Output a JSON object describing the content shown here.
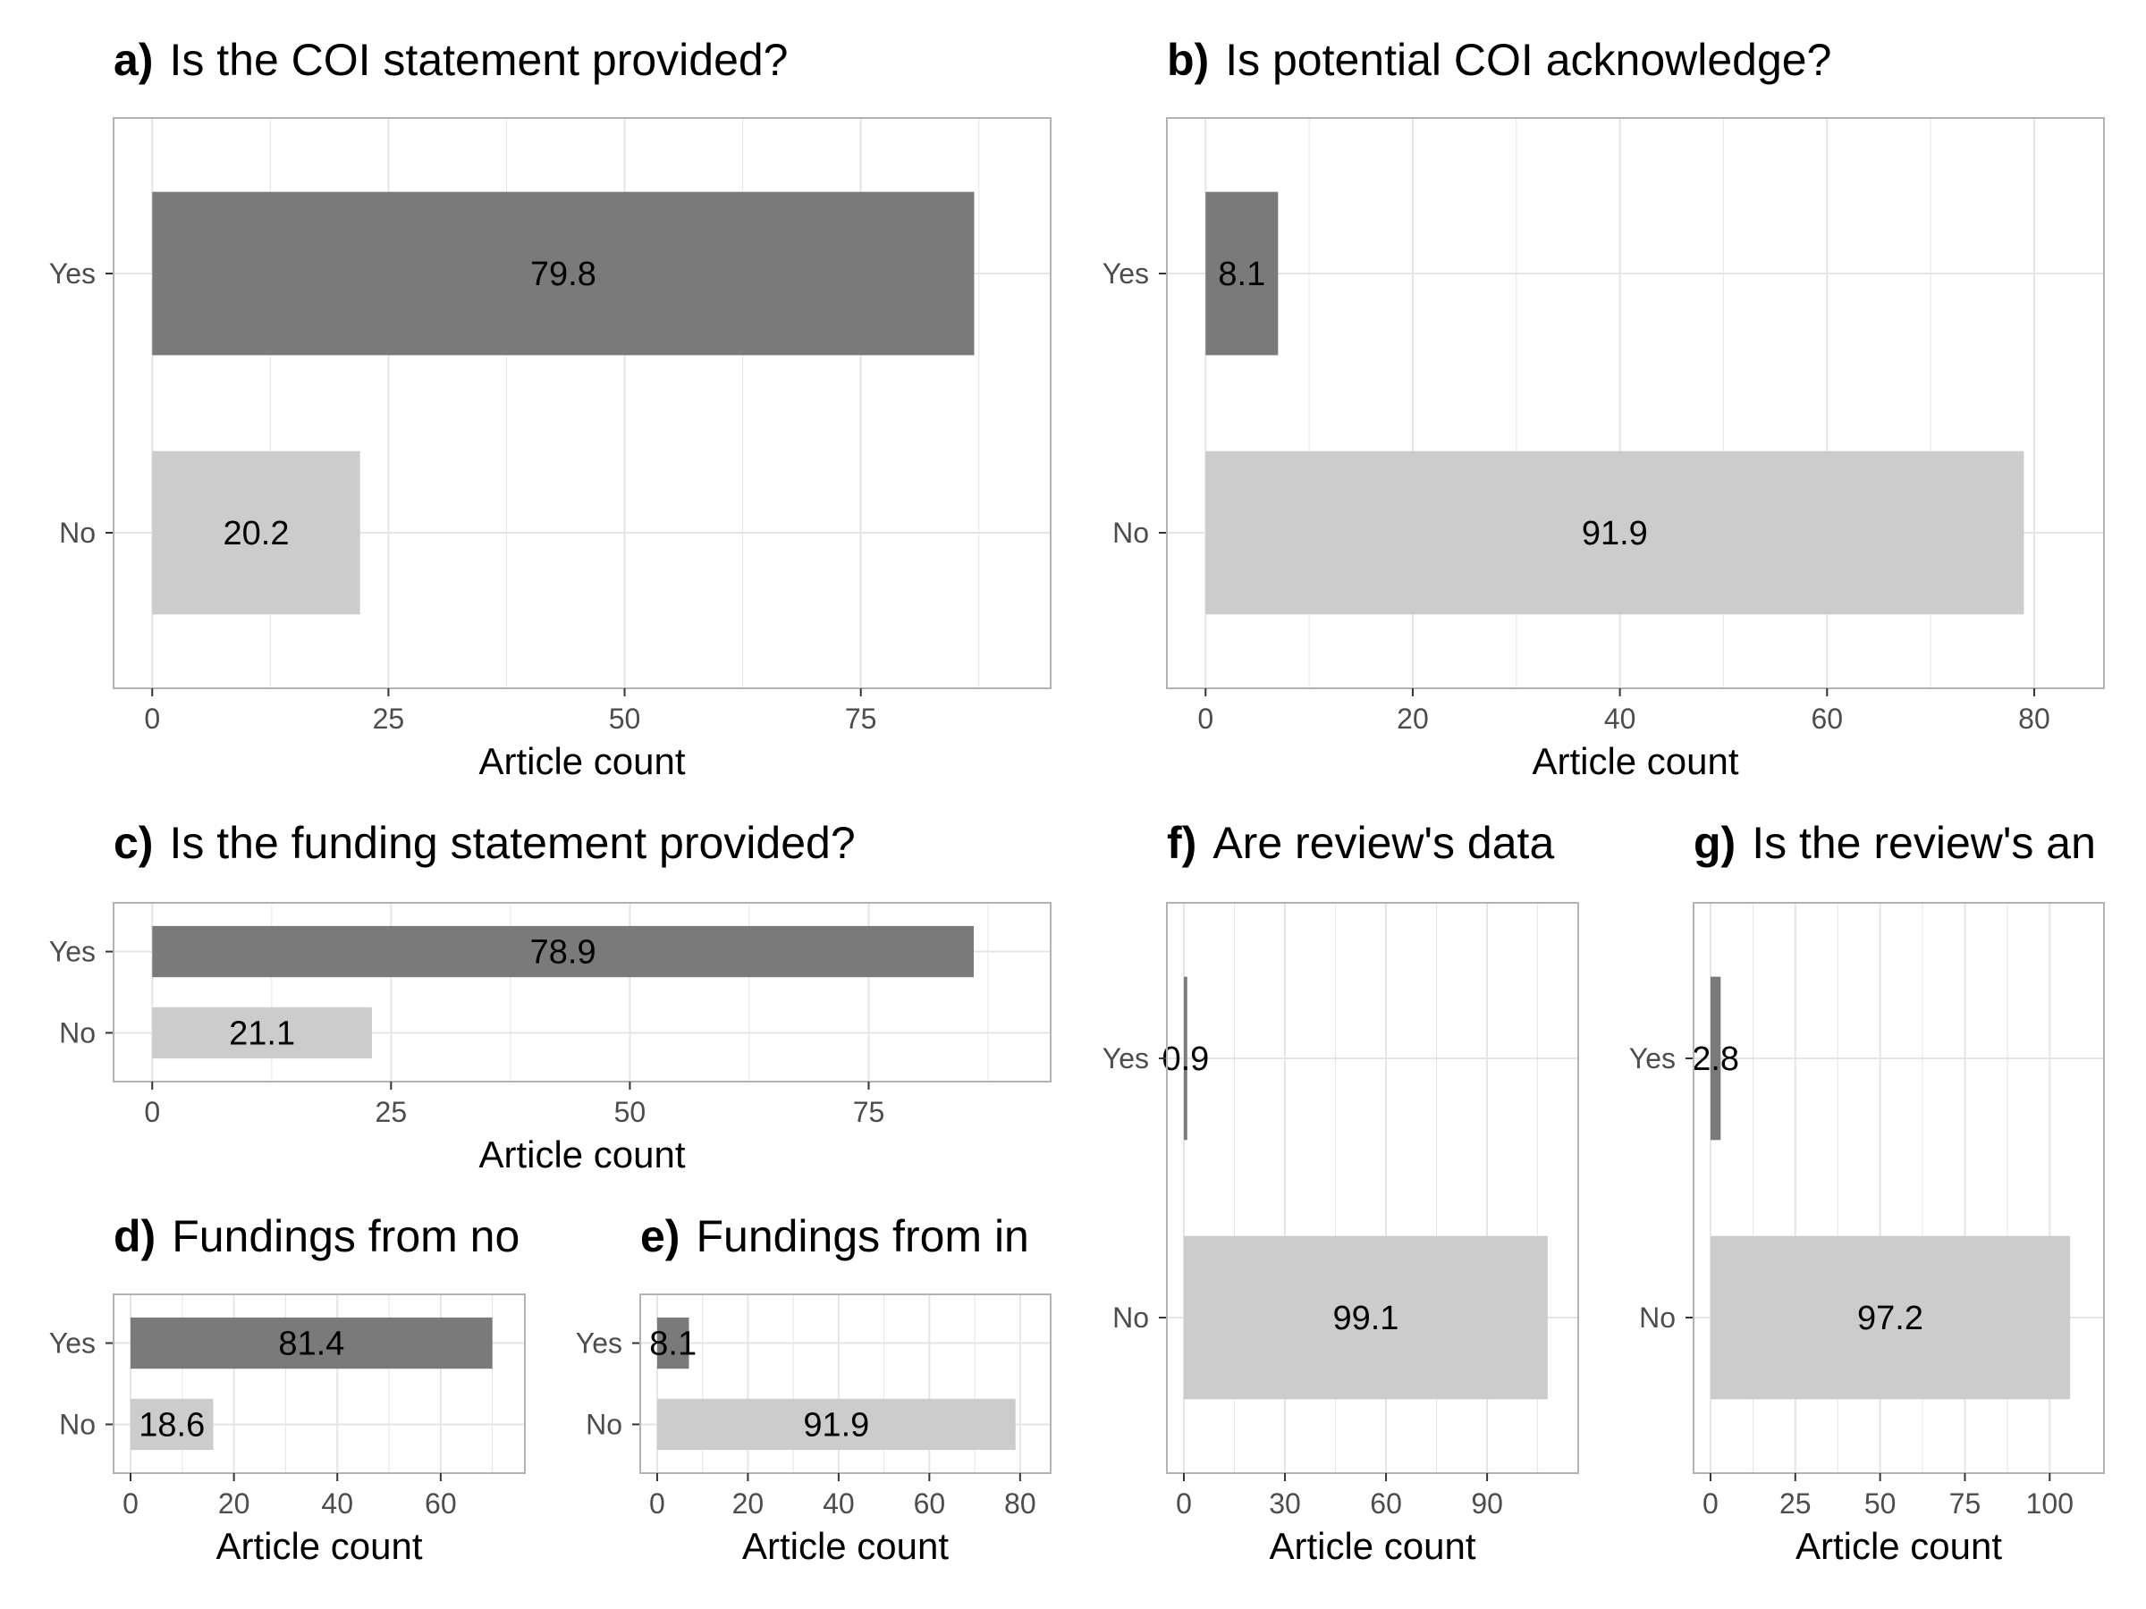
{
  "colors": {
    "yes": "#7a7a7a",
    "no": "#cccccc",
    "grid": "#e5e5e5",
    "panel_border": "#b3b3b3",
    "axis_text": "#4d4d4d",
    "text": "#000000"
  },
  "chart_data": [
    {
      "id": "a",
      "tag": "a)",
      "type": "bar",
      "orientation": "horizontal",
      "title": "Is the COI statement provided?",
      "xlabel": "Article count",
      "categories": [
        "Yes",
        "No"
      ],
      "values": [
        87,
        22
      ],
      "labels": [
        "79.8",
        "20.2"
      ],
      "xlim": [
        0,
        91
      ],
      "xticks": [
        0,
        25,
        50,
        75
      ]
    },
    {
      "id": "b",
      "tag": "b)",
      "type": "bar",
      "orientation": "horizontal",
      "title": "Is potential COI acknowledge?",
      "xlabel": "Article count",
      "categories": [
        "Yes",
        "No"
      ],
      "values": [
        7,
        79
      ],
      "labels": [
        "8.1",
        "91.9"
      ],
      "xlim": [
        0,
        83
      ],
      "xticks": [
        0,
        20,
        40,
        60,
        80
      ]
    },
    {
      "id": "c",
      "tag": "c)",
      "type": "bar",
      "orientation": "horizontal",
      "title": "Is the funding statement provided?",
      "xlabel": "Article count",
      "categories": [
        "Yes",
        "No"
      ],
      "values": [
        86,
        23
      ],
      "labels": [
        "78.9",
        "21.1"
      ],
      "xlim": [
        0,
        90
      ],
      "xticks": [
        0,
        25,
        50,
        75
      ]
    },
    {
      "id": "d",
      "tag": "d)",
      "type": "bar",
      "orientation": "horizontal",
      "title": "Fundings from no",
      "xlabel": "Article count",
      "categories": [
        "Yes",
        "No"
      ],
      "values": [
        70,
        16
      ],
      "labels": [
        "81.4",
        "18.6"
      ],
      "xlim": [
        0,
        73
      ],
      "xticks": [
        0,
        20,
        40,
        60
      ]
    },
    {
      "id": "e",
      "tag": "e)",
      "type": "bar",
      "orientation": "horizontal",
      "title": "Fundings from in",
      "xlabel": "Article count",
      "categories": [
        "Yes",
        "No"
      ],
      "values": [
        7,
        79
      ],
      "labels": [
        "8.1",
        "91.9"
      ],
      "xlim": [
        0,
        83
      ],
      "xticks": [
        0,
        20,
        40,
        60,
        80
      ]
    },
    {
      "id": "f",
      "tag": "f)",
      "type": "bar",
      "orientation": "horizontal",
      "title": "Are review's data",
      "xlabel": "Article count",
      "categories": [
        "Yes",
        "No"
      ],
      "values": [
        1,
        108
      ],
      "labels": [
        "0.9",
        "99.1"
      ],
      "xlim": [
        0,
        112
      ],
      "xticks": [
        0,
        30,
        60,
        90
      ]
    },
    {
      "id": "g",
      "tag": "g)",
      "type": "bar",
      "orientation": "horizontal",
      "title": "Is the review's an",
      "xlabel": "Article count",
      "categories": [
        "Yes",
        "No"
      ],
      "values": [
        3,
        106
      ],
      "labels": [
        "2.8",
        "97.2"
      ],
      "xlim": [
        0,
        111
      ],
      "xticks": [
        0,
        25,
        50,
        75,
        100
      ]
    }
  ]
}
